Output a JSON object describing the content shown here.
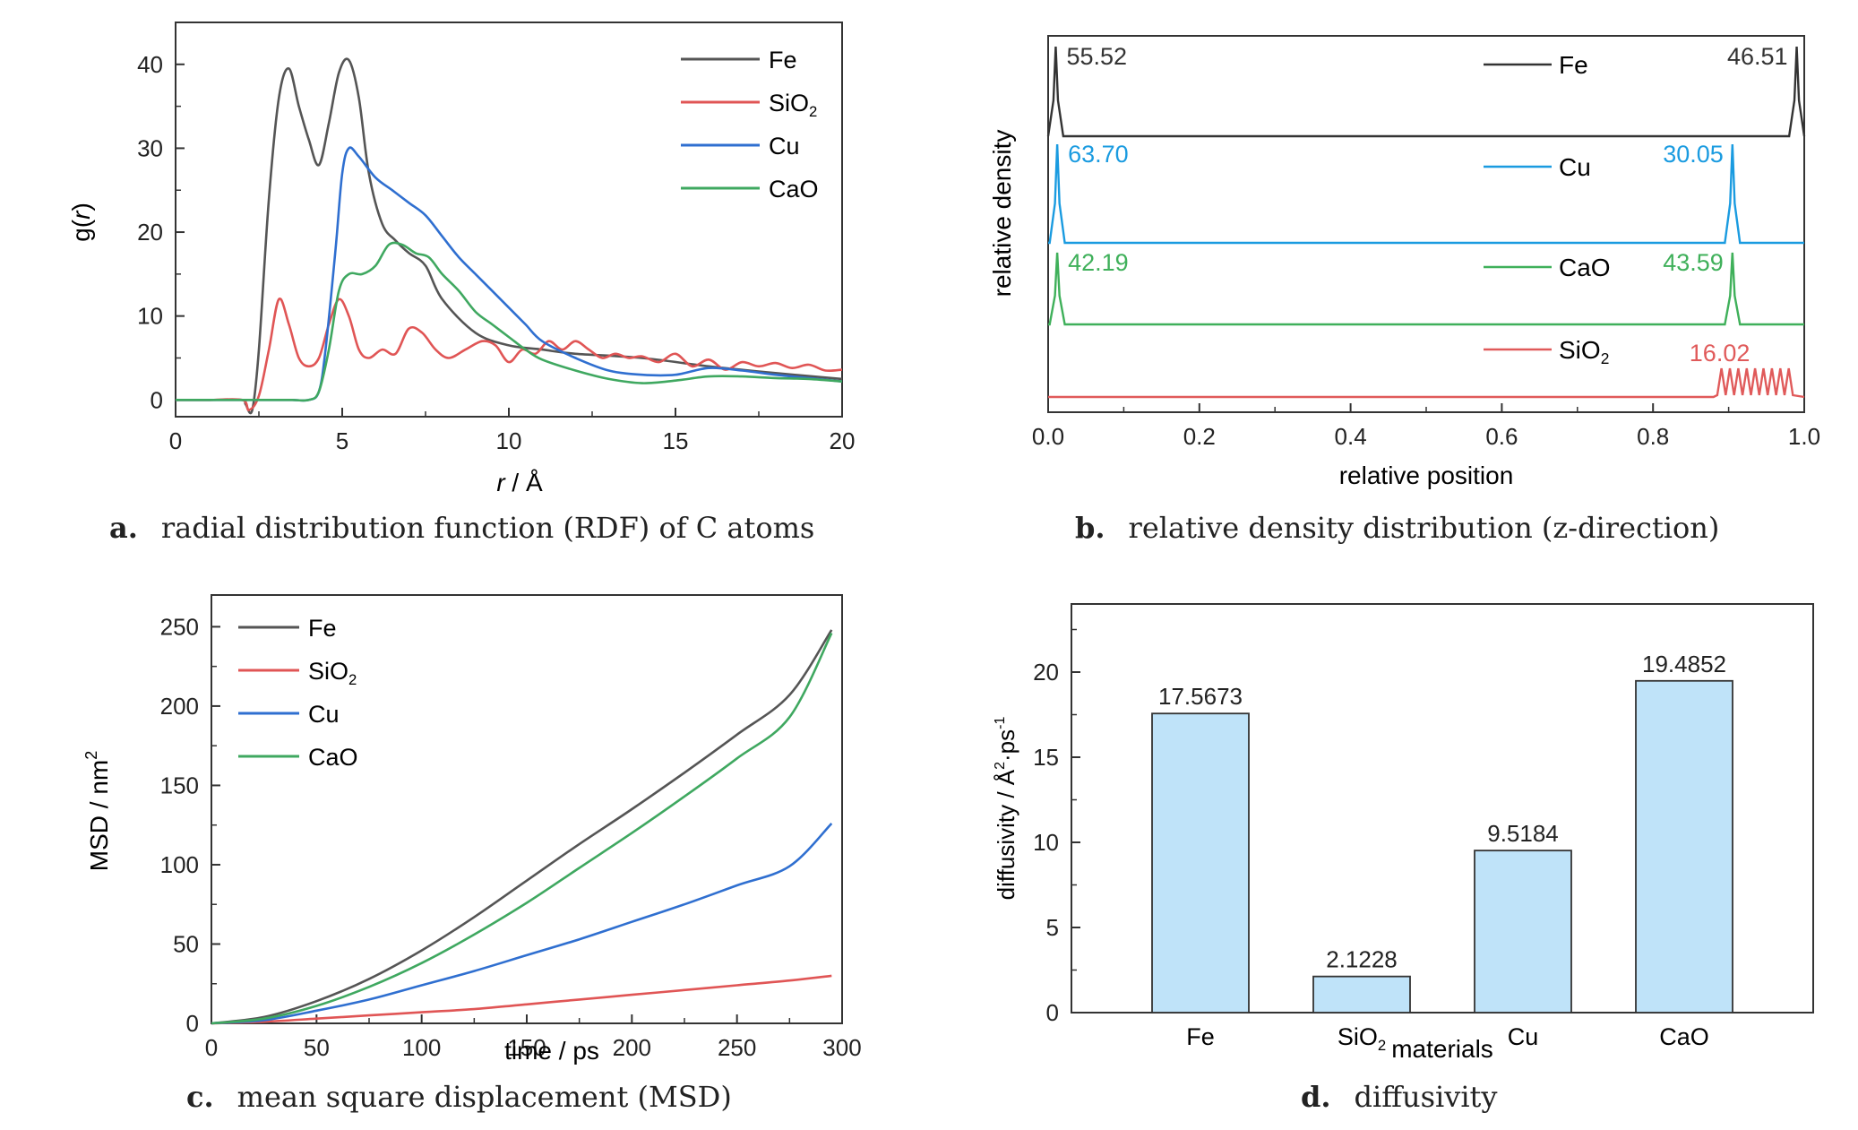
{
  "captions": {
    "a": {
      "letter": "a.",
      "text": "radial distribution function (RDF) of C atoms"
    },
    "b": {
      "letter": "b.",
      "text": "relative density distribution (z-direction)"
    },
    "c": {
      "letter": "c.",
      "text": "mean square displacement (MSD)"
    },
    "d": {
      "letter": "d.",
      "text": "diffusivity"
    }
  },
  "chart_data": [
    {
      "id": "a",
      "type": "line",
      "xlabel": "r / Å",
      "ylabel": "g(r)",
      "xlim": [
        0,
        20
      ],
      "ylim": [
        -2,
        45
      ],
      "xticks": [
        0,
        5,
        10,
        15,
        20
      ],
      "yticks": [
        0,
        10,
        20,
        30,
        40
      ],
      "legend_position": "top-right",
      "series": [
        {
          "name": "Fe",
          "color": "#555555",
          "x": [
            0,
            1,
            2,
            2.1,
            2.3,
            2.5,
            2.8,
            3.1,
            3.4,
            3.7,
            4,
            4.3,
            4.6,
            4.9,
            5.2,
            5.5,
            5.8,
            6.2,
            6.6,
            7,
            7.5,
            8,
            9,
            10,
            11,
            12,
            14,
            16,
            18,
            20
          ],
          "y": [
            0,
            0,
            0,
            -0.5,
            -1.2,
            6,
            24,
            36,
            39.5,
            35,
            31,
            28,
            33,
            39,
            40.5,
            36,
            27,
            21,
            19,
            17.5,
            16,
            12,
            8,
            6.5,
            6,
            5.5,
            5,
            4,
            3.2,
            2.5
          ]
        },
        {
          "name": "SiO2",
          "color": "#e05555",
          "x": [
            0,
            1,
            2,
            2.2,
            2.5,
            2.8,
            3.1,
            3.4,
            3.7,
            4,
            4.3,
            4.6,
            4.9,
            5.2,
            5.5,
            5.8,
            6.2,
            6.6,
            7,
            7.4,
            7.8,
            8.2,
            8.7,
            9.2,
            9.6,
            10,
            10.4,
            10.8,
            11.2,
            11.6,
            12,
            12.4,
            12.8,
            13.2,
            13.6,
            14,
            14.5,
            15,
            15.5,
            16,
            16.5,
            17,
            17.5,
            18,
            18.5,
            19,
            19.5,
            20
          ],
          "y": [
            0,
            0,
            0,
            -1.2,
            0.5,
            6,
            12,
            9,
            5,
            4,
            5,
            9,
            12,
            10,
            6,
            5,
            6,
            5.5,
            8.5,
            8,
            6,
            5,
            6,
            7,
            6.5,
            4.5,
            6,
            5.5,
            7,
            6,
            7,
            6,
            5,
            5.5,
            5,
            5.2,
            4.5,
            5.5,
            4,
            4.8,
            3.6,
            4.5,
            4,
            4.4,
            3.8,
            4.2,
            3.5,
            3.6
          ]
        },
        {
          "name": "Cu",
          "color": "#2f6fd0",
          "x": [
            0,
            1,
            2,
            2.5,
            3,
            3.5,
            4,
            4.3,
            4.5,
            4.8,
            5,
            5.2,
            5.5,
            6,
            6.5,
            7,
            7.5,
            8,
            8.5,
            9,
            9.5,
            10,
            10.5,
            11,
            12,
            13,
            14,
            15,
            16,
            17,
            18,
            19,
            20
          ],
          "y": [
            0,
            0,
            0,
            0,
            0,
            0,
            0,
            1,
            6,
            18,
            27,
            30,
            29,
            26.5,
            25,
            23.5,
            22,
            19.5,
            17,
            15,
            13,
            11,
            9,
            7,
            5,
            3.5,
            3,
            3,
            3.8,
            3.5,
            3,
            2.6,
            2.2
          ]
        },
        {
          "name": "CaO",
          "color": "#3fa860",
          "x": [
            0,
            1,
            2,
            2.5,
            3,
            3.5,
            4,
            4.3,
            4.6,
            4.9,
            5.2,
            5.6,
            6,
            6.4,
            6.8,
            7.2,
            7.6,
            8,
            8.5,
            9,
            9.5,
            10,
            10.5,
            11,
            12,
            13,
            14,
            15,
            16,
            17,
            18,
            19,
            20
          ],
          "y": [
            0,
            0,
            0,
            0,
            0,
            0,
            0,
            1,
            6,
            13,
            15,
            15,
            16,
            18.5,
            18.5,
            17.5,
            17,
            15,
            13,
            10.5,
            9,
            7.5,
            6,
            4.8,
            3.5,
            2.5,
            2,
            2.3,
            2.8,
            2.8,
            2.6,
            2.5,
            2.2
          ]
        }
      ]
    },
    {
      "id": "b",
      "type": "line",
      "xlabel": "relative position",
      "ylabel": "relative density",
      "xlim": [
        0,
        1
      ],
      "xticks": [
        0.0,
        0.2,
        0.4,
        0.6,
        0.8,
        1.0
      ],
      "xtick_labels": [
        "0.0",
        "0.2",
        "0.4",
        "0.6",
        "0.8",
        "1.0"
      ],
      "y_ticks_shown": false,
      "series": [
        {
          "name": "Fe",
          "color": "#333333",
          "peaks": [
            {
              "x": 0.01,
              "label": "55.52"
            },
            {
              "x": 0.99,
              "label": "46.51"
            }
          ]
        },
        {
          "name": "Cu",
          "color": "#1a9be0",
          "peaks": [
            {
              "x": 0.012,
              "label": "63.70"
            },
            {
              "x": 0.905,
              "label": "30.05"
            }
          ]
        },
        {
          "name": "CaO",
          "color": "#3fb05a",
          "peaks": [
            {
              "x": 0.012,
              "label": "42.19"
            },
            {
              "x": 0.905,
              "label": "43.59"
            }
          ]
        },
        {
          "name": "SiO2",
          "color": "#e05a5a",
          "peaks": [
            {
              "x": 0.94,
              "label": "16.02"
            }
          ]
        }
      ]
    },
    {
      "id": "c",
      "type": "line",
      "xlabel": "time / ps",
      "ylabel": "MSD / nm²",
      "xlim": [
        0,
        300
      ],
      "ylim": [
        0,
        270
      ],
      "xticks": [
        0,
        50,
        100,
        150,
        200,
        250,
        300
      ],
      "yticks": [
        0,
        50,
        100,
        150,
        200,
        250
      ],
      "legend_position": "top-left",
      "series": [
        {
          "name": "Fe",
          "color": "#555555",
          "x": [
            0,
            25,
            50,
            75,
            100,
            125,
            150,
            175,
            200,
            225,
            250,
            275,
            295
          ],
          "y": [
            0,
            4,
            14,
            28,
            46,
            67,
            90,
            113,
            135,
            158,
            182,
            207,
            248
          ]
        },
        {
          "name": "SiO2",
          "color": "#e05555",
          "x": [
            0,
            25,
            50,
            75,
            100,
            125,
            150,
            175,
            200,
            225,
            250,
            275,
            295
          ],
          "y": [
            0,
            1,
            3,
            5,
            7,
            9,
            12,
            15,
            18,
            21,
            24,
            27,
            30
          ]
        },
        {
          "name": "Cu",
          "color": "#2f6fd0",
          "x": [
            0,
            25,
            50,
            75,
            100,
            125,
            150,
            175,
            200,
            225,
            250,
            275,
            295
          ],
          "y": [
            0,
            2,
            8,
            15,
            24,
            33,
            43,
            53,
            64,
            75,
            87,
            99,
            126
          ]
        },
        {
          "name": "CaO",
          "color": "#3fa860",
          "x": [
            0,
            25,
            50,
            75,
            100,
            125,
            150,
            175,
            200,
            225,
            250,
            275,
            295
          ],
          "y": [
            0,
            3,
            11,
            23,
            38,
            56,
            76,
            98,
            120,
            143,
            167,
            193,
            246
          ]
        }
      ]
    },
    {
      "id": "d",
      "type": "bar",
      "xlabel": "materials",
      "ylabel": "diffusivity / Å²·ps⁻¹",
      "ylim": [
        0,
        24
      ],
      "yticks": [
        0,
        5,
        10,
        15,
        20
      ],
      "categories": [
        "Fe",
        "SiO2",
        "Cu",
        "CaO"
      ],
      "values": [
        17.5673,
        2.1228,
        9.5184,
        19.4852
      ],
      "value_labels": [
        "17.5673",
        "2.1228",
        "9.5184",
        "19.4852"
      ],
      "bar_color": "#bfe3f9"
    }
  ]
}
